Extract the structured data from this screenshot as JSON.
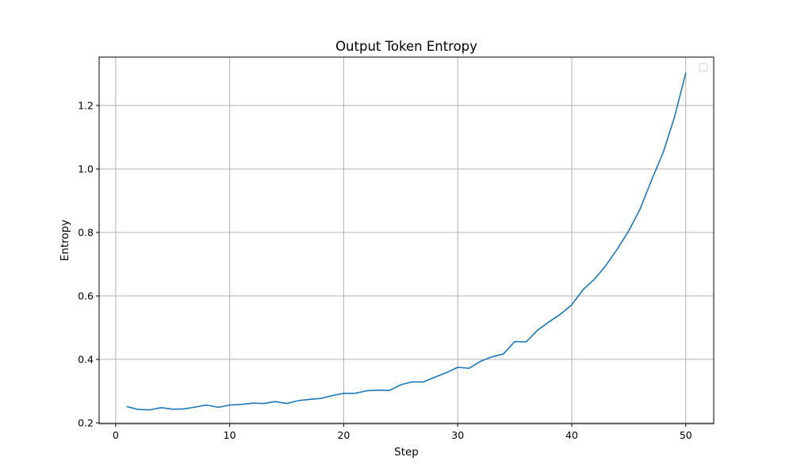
{
  "chart_data": {
    "type": "line",
    "title": "Output Token Entropy",
    "xlabel": "Step",
    "ylabel": "Entropy",
    "xlim": [
      -1.45,
      52.45
    ],
    "ylim": [
      0.1975,
      1.3525
    ],
    "xticks": [
      0,
      10,
      20,
      30,
      40,
      50
    ],
    "yticks": [
      0.2,
      0.4,
      0.6,
      0.8,
      1.0,
      1.2
    ],
    "xtick_labels": [
      "0",
      "10",
      "20",
      "30",
      "40",
      "50"
    ],
    "ytick_labels": [
      "0.2",
      "0.4",
      "0.6",
      "0.8",
      "1.0",
      "1.2"
    ],
    "grid": true,
    "legend": "upper right (empty)",
    "colors": {
      "series": "#1f77b4",
      "grid": "#b0b0b0",
      "frame": "#000000"
    },
    "series": [
      {
        "x": [
          1,
          2,
          3,
          4,
          5,
          6,
          7,
          8,
          9,
          10,
          11,
          12,
          13,
          14,
          15,
          16,
          17,
          18,
          19,
          20,
          21,
          22,
          23,
          24,
          25,
          26,
          27,
          28,
          29,
          30,
          31,
          32,
          33,
          34,
          35,
          36,
          37,
          38,
          39,
          40,
          41,
          42,
          43,
          44,
          45,
          46,
          47,
          48,
          49,
          50
        ],
        "values": [
          0.251,
          0.242,
          0.241,
          0.248,
          0.243,
          0.244,
          0.25,
          0.256,
          0.249,
          0.256,
          0.258,
          0.262,
          0.261,
          0.267,
          0.261,
          0.27,
          0.274,
          0.277,
          0.286,
          0.293,
          0.293,
          0.301,
          0.303,
          0.302,
          0.32,
          0.329,
          0.329,
          0.344,
          0.358,
          0.375,
          0.372,
          0.394,
          0.408,
          0.417,
          0.456,
          0.455,
          0.492,
          0.518,
          0.542,
          0.572,
          0.62,
          0.653,
          0.696,
          0.748,
          0.805,
          0.874,
          0.965,
          1.05,
          1.162,
          1.302
        ]
      }
    ]
  }
}
